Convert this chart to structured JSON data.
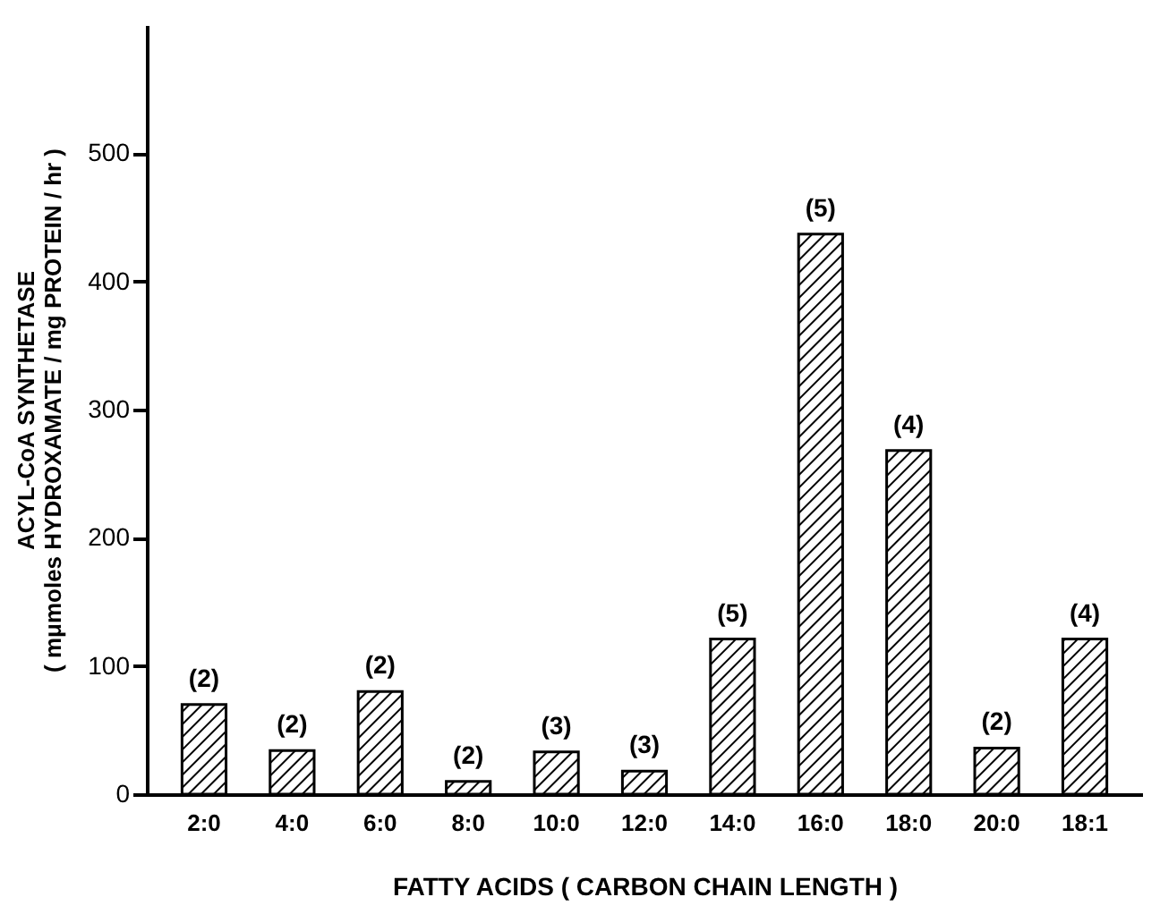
{
  "chart_data": {
    "type": "bar",
    "xlabel": "FATTY ACIDS ( CARBON CHAIN LENGTH )",
    "ylabel": "ACYL-CoA SYNTHETASE\n( mμmoles HYDROXAMATE / mg PROTEIN / hr )",
    "categories": [
      "2:0",
      "4:0",
      "6:0",
      "8:0",
      "10:0",
      "12:0",
      "14:0",
      "16:0",
      "18:0",
      "20:0",
      "18:1"
    ],
    "values": [
      70,
      34,
      80,
      10,
      33,
      18,
      121,
      437,
      268,
      36,
      121
    ],
    "annotations": [
      {
        "text": "(2)",
        "x": "2:0",
        "y": 70
      },
      {
        "text": "(2)",
        "x": "4:0",
        "y": 34
      },
      {
        "text": "(2)",
        "x": "6:0",
        "y": 80
      },
      {
        "text": "(2)",
        "x": "8:0",
        "y": 10
      },
      {
        "text": "(3)",
        "x": "10:0",
        "y": 33
      },
      {
        "text": "(3)",
        "x": "12:0",
        "y": 18
      },
      {
        "text": "(5)",
        "x": "14:0",
        "y": 121
      },
      {
        "text": "(5)",
        "x": "16:0",
        "y": 437
      },
      {
        "text": "(4)",
        "x": "18:0",
        "y": 268
      },
      {
        "text": "(2)",
        "x": "20:0",
        "y": 36
      },
      {
        "text": "(4)",
        "x": "18:1",
        "y": 121
      }
    ],
    "color": "#000000",
    "ylim": [
      0,
      600
    ],
    "yticks": [
      0,
      100,
      200,
      300,
      400,
      500
    ],
    "grid": false
  }
}
